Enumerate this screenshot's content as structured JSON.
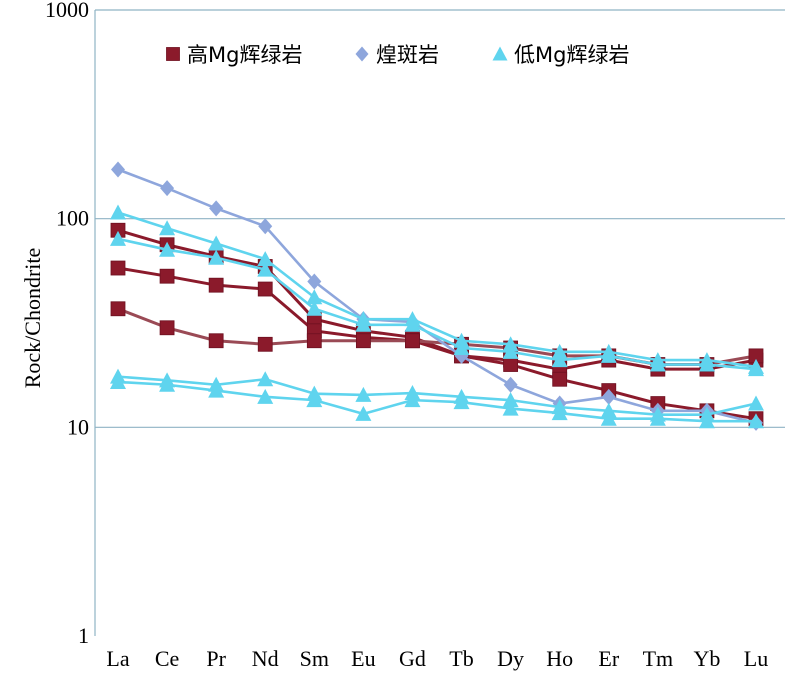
{
  "chart_data": {
    "type": "line",
    "title": "",
    "xlabel": "",
    "ylabel": "Rock/Chondrite",
    "yscale": "log",
    "ylim": [
      1,
      1000
    ],
    "yticks": [
      "1",
      "10",
      "100",
      "1000"
    ],
    "grid": "horizontal",
    "legend_position": "top",
    "categories": [
      "La",
      "Ce",
      "Pr",
      "Nd",
      "Sm",
      "Eu",
      "Gd",
      "Tb",
      "Dy",
      "Ho",
      "Er",
      "Tm",
      "Yb",
      "Lu"
    ],
    "legend": [
      {
        "name": "高Mg辉绿岩",
        "marker": "square",
        "color": "#8b1a2b"
      },
      {
        "name": "煌斑岩",
        "marker": "diamond",
        "color": "#8ea6dc"
      },
      {
        "name": "低Mg辉绿岩",
        "marker": "triangle",
        "color": "#5fd4ee"
      }
    ],
    "series": [
      {
        "group": 0,
        "values": [
          88,
          75,
          66,
          59,
          33,
          29,
          27,
          22,
          21,
          19,
          21,
          19,
          19,
          21
        ]
      },
      {
        "group": 0,
        "values": [
          58,
          53,
          48,
          46,
          29,
          27,
          26,
          22,
          20,
          17,
          15,
          13,
          12,
          11
        ]
      },
      {
        "group": 0,
        "values": [
          37,
          30,
          26,
          25,
          26,
          26,
          26,
          25,
          24,
          22,
          22,
          20,
          20,
          22
        ]
      },
      {
        "group": 1,
        "values": [
          172,
          140,
          112,
          92,
          50,
          33,
          32,
          22,
          16,
          13,
          14,
          12,
          12,
          10.5
        ]
      },
      {
        "group": 2,
        "values": [
          107,
          90,
          76,
          64,
          42,
          33,
          33,
          26,
          25,
          23,
          23,
          21,
          21,
          19.5
        ]
      },
      {
        "group": 2,
        "values": [
          80,
          71,
          65,
          57,
          37,
          31,
          31,
          24,
          23,
          21,
          22,
          20,
          20,
          19
        ]
      },
      {
        "group": 2,
        "values": [
          17.5,
          16.8,
          16,
          17,
          14.5,
          14.3,
          14.6,
          14,
          13.5,
          12.5,
          12,
          11.5,
          11.5,
          13
        ]
      },
      {
        "group": 2,
        "values": [
          16.5,
          16,
          15,
          14,
          13.5,
          11.6,
          13.5,
          13.2,
          12.3,
          11.7,
          11,
          11,
          10.7,
          10.7
        ]
      }
    ]
  }
}
